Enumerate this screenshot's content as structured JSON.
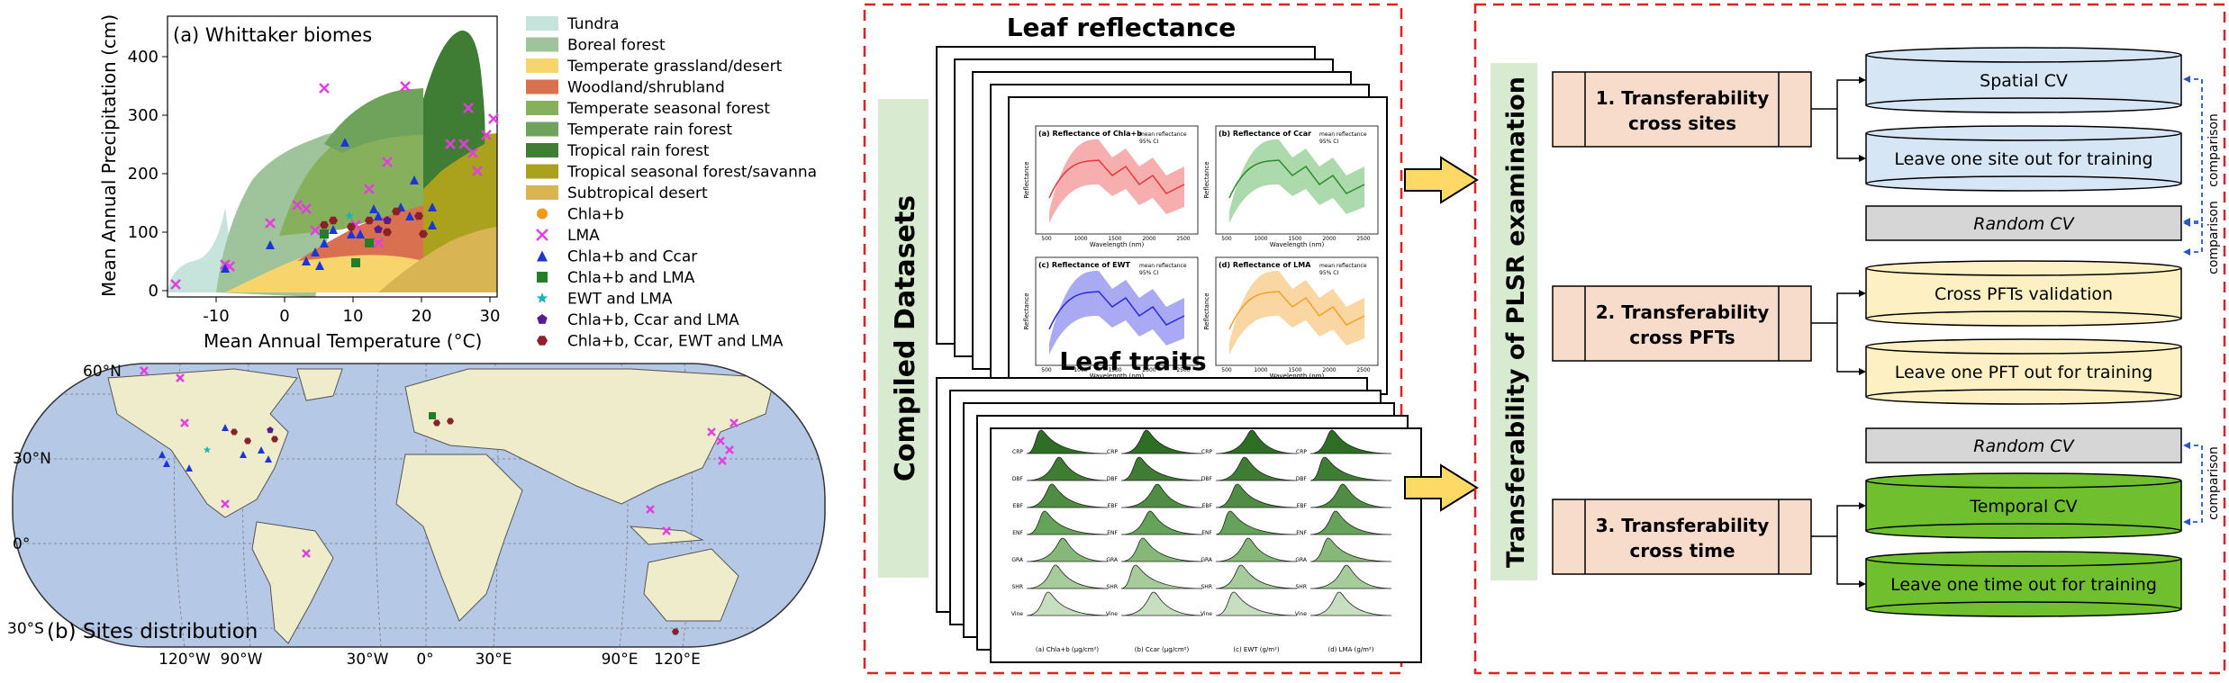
{
  "panel_a": {
    "label": "(a) Whittaker biomes",
    "xlabel": "Mean Annual Temperature (°C)",
    "ylabel": "Mean Annual Precipitation (cm)",
    "xticks": [
      "-10",
      "0",
      "10",
      "20",
      "30"
    ],
    "yticks": [
      "0",
      "100",
      "200",
      "300",
      "400"
    ],
    "biome_legend": [
      {
        "label": "Tundra",
        "color": "#c6e3dc"
      },
      {
        "label": "Boreal forest",
        "color": "#9fc39b"
      },
      {
        "label": "Temperate grassland/desert",
        "color": "#f8d46c"
      },
      {
        "label": "Woodland/shrubland",
        "color": "#d9704f"
      },
      {
        "label": "Temperate seasonal forest",
        "color": "#86b05c"
      },
      {
        "label": "Temperate rain forest",
        "color": "#6fa35c"
      },
      {
        "label": "Tropical rain forest",
        "color": "#3f7c34"
      },
      {
        "label": "Tropical seasonal forest/savanna",
        "color": "#aaa21d"
      },
      {
        "label": "Subtropical desert",
        "color": "#d9b452"
      }
    ],
    "marker_legend": [
      {
        "label": "Chla+b",
        "color": "#f39a1a",
        "marker": "circle"
      },
      {
        "label": "LMA",
        "color": "#e23ee0",
        "marker": "x"
      },
      {
        "label": "Chla+b and Ccar",
        "color": "#1c35d6",
        "marker": "triangle"
      },
      {
        "label": "Chla+b and LMA",
        "color": "#257d2a",
        "marker": "square"
      },
      {
        "label": "EWT and LMA",
        "color": "#1bb4b4",
        "marker": "star"
      },
      {
        "label": "Chla+b, Ccar and LMA",
        "color": "#5a1b91",
        "marker": "pentagon"
      },
      {
        "label": "Chla+b, Ccar, EWT and LMA",
        "color": "#8b1f2a",
        "marker": "hexagon"
      }
    ]
  },
  "panel_b": {
    "label": "(b) Sites distribution",
    "lat_labels": [
      "60°N",
      "30°N",
      "0°",
      "30°S"
    ],
    "lon_labels": [
      "120°W",
      "90°W",
      "30°W",
      "0°",
      "30°E",
      "90°E",
      "120°E"
    ]
  },
  "middle": {
    "reflectance_title": "Leaf reflectance",
    "traits_title": "Leaf traits",
    "compiled_label": "Compiled Datasets",
    "spec_panels": [
      "(a) Reflectance of Chla+b",
      "(b) Reflectance of Ccar",
      "(c) Reflectance of EWT",
      "(d) Reflectance of LMA"
    ],
    "spec_legend": [
      "mean reflectance",
      "95% CI"
    ],
    "spec_xlabel": "Wavelength (nm)",
    "spec_ylabel": "Reflectance",
    "spec_xticks": [
      "500",
      "1000",
      "1500",
      "2000",
      "2500"
    ],
    "pft_labels": [
      "CRP",
      "DBF",
      "EBF",
      "ENF",
      "GRA",
      "SHR",
      "Vine"
    ],
    "trait_xlabels": [
      "(a) Chla+b (μg/cm²)",
      "(b) Ccar (μg/cm²)",
      "(c) EWT (g/m²)",
      "(d) LMA (g/m²)"
    ]
  },
  "right": {
    "vertical_title": "Transferability of PLSR examination",
    "sections": [
      {
        "title_line1": "1. Transferability",
        "title_line2": "cross sites",
        "methods": [
          "Spatial CV",
          "Leave one site out for training"
        ],
        "color": "#d6e6f5"
      },
      {
        "title_line1": "2. Transferability",
        "title_line2": "cross PFTs",
        "methods": [
          "Cross PFTs validation",
          "Leave one PFT out for training"
        ],
        "color": "#fdf1c4"
      },
      {
        "title_line1": "3. Transferability",
        "title_line2": "cross time",
        "methods": [
          "Temporal CV",
          "Leave one time out for training"
        ],
        "color": "#6fbf2f"
      }
    ],
    "random_cv": "Random CV",
    "comparison": "comparison"
  },
  "colors": {
    "dashed_border": "#e02020",
    "section_box": "#f8dccb",
    "compiled_bar": "#d8ead0",
    "vertical_bar": "#d8ead0",
    "arrow_fill": "#ffd966",
    "random_cv_fill": "#d6d6d6",
    "ocean": "#b5c8e6",
    "land": "#efeccb"
  }
}
